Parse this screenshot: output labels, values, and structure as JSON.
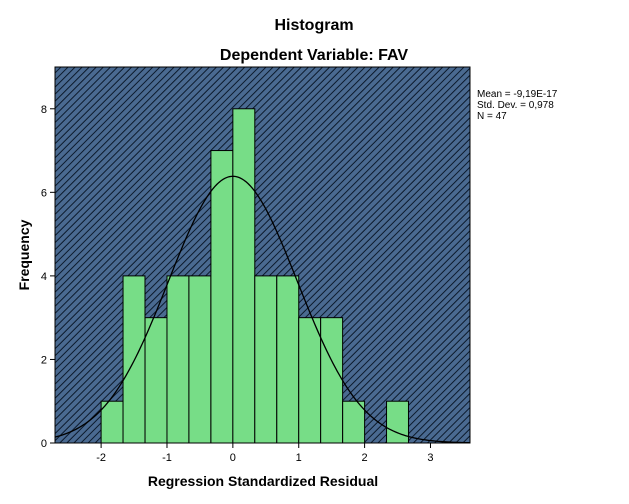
{
  "chart_data": {
    "type": "bar",
    "title": "Histogram",
    "subtitle": "Dependent Variable: FAV",
    "xlabel": "Regression Standardized Residual",
    "ylabel": "Frequency",
    "xlim": [
      -2.7,
      3.6
    ],
    "ylim": [
      0,
      9
    ],
    "xticks": [
      -2,
      -1,
      0,
      1,
      2,
      3
    ],
    "yticks": [
      0,
      2,
      4,
      6,
      8
    ],
    "bin_width": 0.333,
    "bins": [
      {
        "start": -2.0,
        "count": 1
      },
      {
        "start": -1.667,
        "count": 4
      },
      {
        "start": -1.333,
        "count": 3
      },
      {
        "start": -1.0,
        "count": 4
      },
      {
        "start": -0.667,
        "count": 4
      },
      {
        "start": -0.333,
        "count": 7
      },
      {
        "start": 0.0,
        "count": 8
      },
      {
        "start": 0.333,
        "count": 4
      },
      {
        "start": 0.667,
        "count": 4
      },
      {
        "start": 1.0,
        "count": 3
      },
      {
        "start": 1.333,
        "count": 3
      },
      {
        "start": 1.667,
        "count": 1
      },
      {
        "start": 2.0,
        "count": 0
      },
      {
        "start": 2.333,
        "count": 1
      }
    ],
    "normal_curve": {
      "mean": -9.19e-17,
      "sd": 0.978,
      "n": 47
    },
    "stats_text": [
      "Mean = -9,19E-17",
      "Std. Dev. = 0,978",
      "N = 47"
    ],
    "colors": {
      "plot_background": "#4a6a91",
      "hatch_line": "#0c1a2c",
      "bar_fill": "#77dd87",
      "bar_edge": "#000000",
      "curve": "#000000"
    }
  }
}
